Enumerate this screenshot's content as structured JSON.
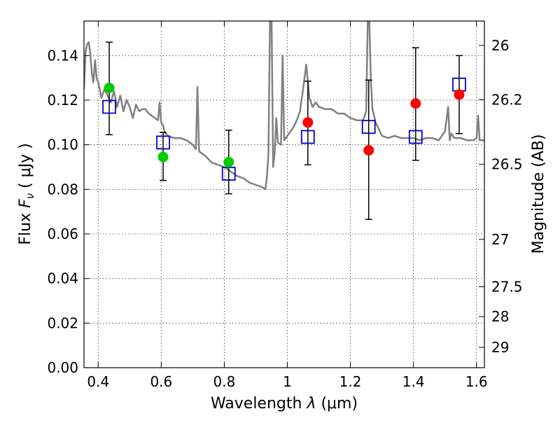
{
  "chart_data": {
    "type": "scatter",
    "title": "",
    "xlabel_prefix": "Wavelength  ",
    "xlabel_lambda": "λ",
    "xlabel_unit": " (μm)",
    "ylabel_prefix": "Flux  ",
    "ylabel_symbol": "F",
    "ylabel_subscript": "ν",
    "ylabel_unit": "  ( μJy )",
    "y2label": "Magnitude (AB)",
    "xlim": [
      0.355,
      1.625
    ],
    "ylim": [
      0.0,
      0.1555
    ],
    "grid": true,
    "x_ticks": [
      {
        "value": 0.4,
        "label": "0.4"
      },
      {
        "value": 0.6,
        "label": "0.6"
      },
      {
        "value": 0.8,
        "label": "0.8"
      },
      {
        "value": 1.0,
        "label": "1"
      },
      {
        "value": 1.2,
        "label": "1.2"
      },
      {
        "value": 1.4,
        "label": "1.4"
      },
      {
        "value": 1.6,
        "label": "1.6"
      }
    ],
    "y_ticks": [
      {
        "value": 0.0,
        "label": "0.00"
      },
      {
        "value": 0.02,
        "label": "0.02"
      },
      {
        "value": 0.04,
        "label": "0.04"
      },
      {
        "value": 0.06,
        "label": "0.06"
      },
      {
        "value": 0.08,
        "label": "0.08"
      },
      {
        "value": 0.1,
        "label": "0.10"
      },
      {
        "value": 0.12,
        "label": "0.12"
      },
      {
        "value": 0.14,
        "label": "0.14"
      }
    ],
    "y2_ticks": [
      {
        "value": 26,
        "label": "26"
      },
      {
        "value": 26.2,
        "label": "26.2"
      },
      {
        "value": 26.5,
        "label": "26.5"
      },
      {
        "value": 27,
        "label": "27"
      },
      {
        "value": 27.5,
        "label": "27.5"
      },
      {
        "value": 28,
        "label": "28"
      },
      {
        "value": 29,
        "label": "29"
      }
    ],
    "model_spectrum": {
      "color": "#808080",
      "x": [
        0.355,
        0.36,
        0.365,
        0.37,
        0.375,
        0.38,
        0.385,
        0.39,
        0.395,
        0.4,
        0.41,
        0.42,
        0.43,
        0.44,
        0.45,
        0.46,
        0.47,
        0.48,
        0.49,
        0.5,
        0.51,
        0.52,
        0.53,
        0.54,
        0.55,
        0.56,
        0.57,
        0.58,
        0.59,
        0.595,
        0.6,
        0.605,
        0.61,
        0.62,
        0.64,
        0.66,
        0.68,
        0.7,
        0.71,
        0.715,
        0.72,
        0.74,
        0.76,
        0.78,
        0.8,
        0.82,
        0.84,
        0.86,
        0.88,
        0.9,
        0.92,
        0.93,
        0.935,
        0.94,
        0.945,
        0.95,
        0.955,
        0.96,
        0.965,
        0.97,
        0.98,
        0.985,
        0.99,
        1.0,
        1.01,
        1.02,
        1.03,
        1.04,
        1.05,
        1.06,
        1.07,
        1.08,
        1.09,
        1.1,
        1.12,
        1.14,
        1.16,
        1.18,
        1.2,
        1.22,
        1.24,
        1.25,
        1.255,
        1.26,
        1.265,
        1.27,
        1.28,
        1.3,
        1.32,
        1.34,
        1.36,
        1.38,
        1.4,
        1.42,
        1.44,
        1.46,
        1.48,
        1.5,
        1.51,
        1.515,
        1.52,
        1.53,
        1.55,
        1.57,
        1.59,
        1.6,
        1.605,
        1.61,
        1.625
      ],
      "y": [
        0.125,
        0.142,
        0.145,
        0.146,
        0.141,
        0.132,
        0.128,
        0.138,
        0.13,
        0.128,
        0.121,
        0.125,
        0.122,
        0.119,
        0.124,
        0.117,
        0.122,
        0.115,
        0.12,
        0.117,
        0.112,
        0.118,
        0.115,
        0.116,
        0.116,
        0.114,
        0.113,
        0.112,
        0.111,
        0.119,
        0.11,
        0.109,
        0.106,
        0.104,
        0.103,
        0.103,
        0.102,
        0.1,
        0.098,
        0.126,
        0.097,
        0.095,
        0.092,
        0.091,
        0.09,
        0.088,
        0.086,
        0.085,
        0.083,
        0.082,
        0.081,
        0.08,
        0.085,
        0.096,
        0.156,
        0.156,
        0.09,
        0.097,
        0.112,
        0.101,
        0.1,
        0.14,
        0.102,
        0.104,
        0.106,
        0.108,
        0.111,
        0.115,
        0.125,
        0.136,
        0.121,
        0.117,
        0.119,
        0.117,
        0.116,
        0.116,
        0.114,
        0.114,
        0.112,
        0.111,
        0.111,
        0.115,
        0.156,
        0.156,
        0.128,
        0.116,
        0.11,
        0.104,
        0.103,
        0.104,
        0.103,
        0.103,
        0.103,
        0.102,
        0.103,
        0.103,
        0.102,
        0.106,
        0.117,
        0.102,
        0.105,
        0.103,
        0.103,
        0.102,
        0.102,
        0.103,
        0.113,
        0.102,
        0.102
      ]
    },
    "series": [
      {
        "color": "#00cc00",
        "marker": "circle",
        "points": [
          {
            "x": 0.435,
            "y": 0.1255,
            "err_lo": 0.1045,
            "err_hi": 0.146
          },
          {
            "x": 0.606,
            "y": 0.0945,
            "err_lo": 0.084,
            "err_hi": 0.1055
          },
          {
            "x": 0.814,
            "y": 0.0922,
            "err_lo": 0.078,
            "err_hi": 0.1065
          }
        ]
      },
      {
        "color": "#ff0000",
        "marker": "circle",
        "points": [
          {
            "x": 1.065,
            "y": 0.11,
            "err_lo": 0.091,
            "err_hi": 0.1285
          },
          {
            "x": 1.258,
            "y": 0.0975,
            "err_lo": 0.0665,
            "err_hi": 0.129
          },
          {
            "x": 1.407,
            "y": 0.1185,
            "err_lo": 0.093,
            "err_hi": 0.1435
          },
          {
            "x": 1.545,
            "y": 0.1225,
            "err_lo": 0.105,
            "err_hi": 0.14
          }
        ]
      },
      {
        "color": "#0000cc",
        "marker": "open-square",
        "points": [
          {
            "x": 0.435,
            "y": 0.117
          },
          {
            "x": 0.606,
            "y": 0.101
          },
          {
            "x": 0.814,
            "y": 0.087
          },
          {
            "x": 1.065,
            "y": 0.1035
          },
          {
            "x": 1.258,
            "y": 0.108
          },
          {
            "x": 1.407,
            "y": 0.1035
          },
          {
            "x": 1.545,
            "y": 0.127
          }
        ]
      }
    ]
  }
}
